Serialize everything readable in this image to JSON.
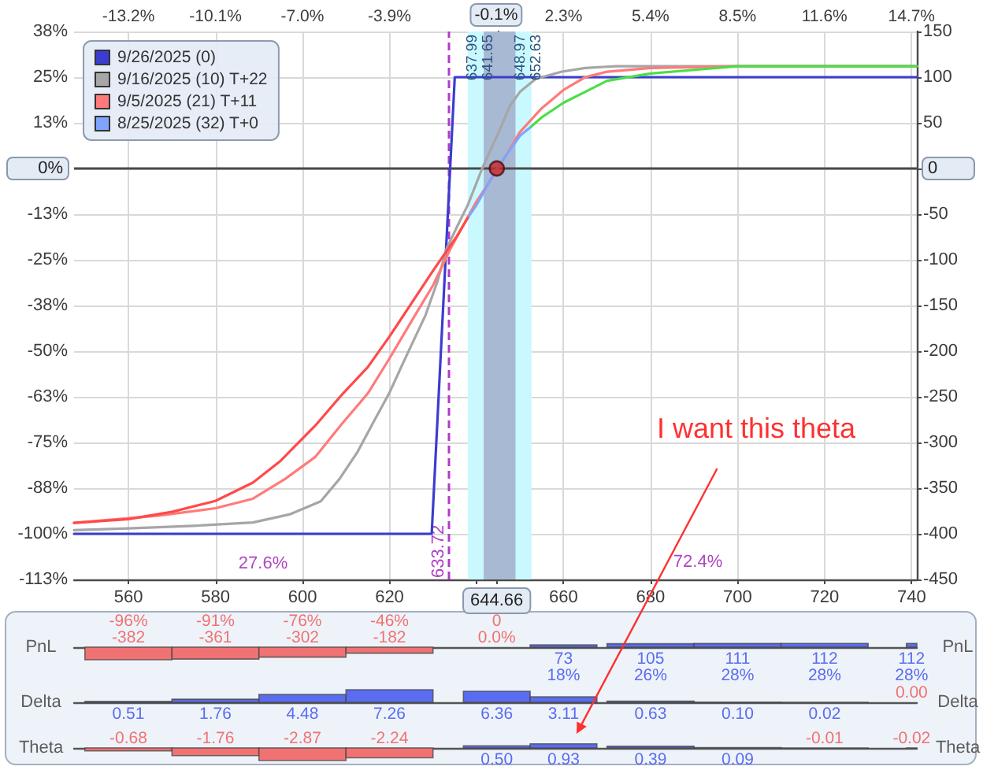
{
  "chart_data": [
    {
      "type": "line",
      "xlim": [
        547.5,
        741.2
      ],
      "xticks": [
        560,
        580,
        600,
        620,
        {
          "value": 640,
          "label": null
        },
        {
          "value": 644.66,
          "label": "644.66"
        },
        660,
        680,
        700,
        720,
        740
      ],
      "x2lim": [
        -15.14,
        14.89
      ],
      "x2ticks": [
        {
          "value": -13.2,
          "label": "-13.2%"
        },
        {
          "value": -10.1,
          "label": "-10.1%"
        },
        {
          "value": -7.0,
          "label": "-7.0%"
        },
        {
          "value": -3.9,
          "label": "-3.9%"
        },
        {
          "value": -0.8,
          "label": null
        },
        {
          "value": -0.1,
          "label": "-0.1%"
        },
        {
          "value": 2.3,
          "label": "2.3%"
        },
        {
          "value": 5.4,
          "label": "5.4%"
        },
        {
          "value": 8.5,
          "label": "8.5%"
        },
        {
          "value": 11.6,
          "label": "11.6%"
        },
        {
          "value": 14.7,
          "label": "14.7%"
        }
      ],
      "ylim": [
        -112.5,
        37.5
      ],
      "yticks": [
        {
          "value": 37.5,
          "label": "38%"
        },
        {
          "value": 25,
          "label": "25%"
        },
        {
          "value": 12.5,
          "label": "13%"
        },
        {
          "value": 0,
          "label": "0%"
        },
        {
          "value": -12.5,
          "label": "-13%"
        },
        {
          "value": -25,
          "label": "-25%"
        },
        {
          "value": -37.5,
          "label": "-38%"
        },
        {
          "value": -50,
          "label": "-50%"
        },
        {
          "value": -62.5,
          "label": "-63%"
        },
        {
          "value": -75,
          "label": "-75%"
        },
        {
          "value": -87.5,
          "label": "-88%"
        },
        {
          "value": -100,
          "label": "-100%"
        },
        {
          "value": -112.5,
          "label": "-113%"
        }
      ],
      "y2lim": [
        -450,
        150
      ],
      "y2ticks": [
        150,
        100,
        50,
        0,
        -50,
        -100,
        -150,
        -200,
        -250,
        -300,
        -350,
        -400,
        -450
      ],
      "grid": true,
      "legend": "top left",
      "marker": "none",
      "series": [
        {
          "name": "9/26/2025 (0)",
          "color": "#3c3cd0",
          "x": [
            547.5,
            629.7,
            635,
            741.2
          ],
          "values": [
            -100,
            -100,
            25,
            25
          ]
        },
        {
          "name": "9/16/2025 (10) T+22",
          "color": "#a6a6a6",
          "x": [
            547.5,
            560,
            575,
            588.6,
            597,
            604.2,
            608.5,
            612.7,
            616.5,
            619.9,
            624,
            628.3,
            631,
            633.1,
            635.5,
            638,
            641.3,
            643,
            645.5,
            647.6,
            650,
            653.6,
            659.6,
            665,
            672,
            741.2
          ],
          "values": [
            -99,
            -98.5,
            -97.8,
            -96.9,
            -94.7,
            -91.1,
            -85,
            -77.5,
            -69,
            -61.6,
            -51,
            -40.1,
            -31,
            -22,
            -16,
            -10,
            0,
            4.5,
            11,
            17,
            21,
            24.5,
            26.5,
            27.5,
            28,
            28
          ]
        },
        {
          "name": "9/5/2025 (21) T+11",
          "color": "#ff7b7b",
          "x": [
            547.5,
            567,
            580,
            588.6,
            596,
            603,
            609,
            615,
            620,
            625.9,
            630,
            634,
            640,
            645,
            650,
            655,
            660,
            665,
            670,
            680,
            700,
            741.2
          ],
          "values": [
            -97,
            -95,
            -93,
            -90.4,
            -85,
            -78.9,
            -70,
            -61.6,
            -52,
            -40.1,
            -32,
            -22,
            -9,
            0,
            10,
            16.5,
            21.5,
            25,
            26.5,
            27.5,
            28,
            28
          ]
        },
        {
          "name": "8/25/2025 (32) T+0",
          "color": "#7fa4ff",
          "x": [
            638,
            640,
            644.66,
            650,
            652.6
          ],
          "values": [
            -13.5,
            -10,
            0,
            9,
            11.5
          ]
        },
        {
          "color": "#ff4a4a",
          "x": [
            547.5,
            560,
            570,
            580,
            588.6,
            595,
            603,
            609,
            615,
            620,
            625,
            630,
            635.5,
            638
          ],
          "values": [
            -97,
            -96,
            -94,
            -91,
            -86,
            -80,
            -70.3,
            -62,
            -54.4,
            -46,
            -37,
            -28,
            -18.5,
            -13.5
          ]
        },
        {
          "color": "#4ade4a",
          "x": [
            652.6,
            655,
            660,
            665,
            670,
            680,
            690,
            700,
            720,
            741.2
          ],
          "values": [
            11.5,
            14,
            18,
            21,
            24,
            26,
            27,
            28,
            28,
            28
          ]
        },
        {
          "type": "scatter",
          "color": "#c82828",
          "marker": "circle",
          "x": [
            644.66
          ],
          "values": [
            0
          ]
        }
      ],
      "ref_lines": [
        {
          "axis": "x",
          "value": 633.72,
          "label": "633.72",
          "color": "#b03cc6",
          "line_style": "dashed"
        },
        {
          "axis": "y",
          "value": 0,
          "color": "#4a4a4a"
        }
      ],
      "bands": [
        {
          "axis": "x",
          "from": 637.99,
          "to": 652.63,
          "color": "#c9f9ff"
        },
        {
          "axis": "x",
          "from": 641.65,
          "to": 648.97,
          "color": "#a8b9d4"
        }
      ],
      "annotations": [
        "I want this theta",
        "27.6%",
        "72.4%",
        {
          "text": "637.99",
          "x": 637.99,
          "y": 37.5
        },
        {
          "text": "641.65",
          "x": 641.65,
          "y": 37.5
        },
        {
          "text": "648.97",
          "x": 648.97,
          "y": 37.5
        },
        {
          "text": "652.63",
          "x": 652.63,
          "y": 37.5
        }
      ]
    },
    {
      "type": "bar",
      "x": [
        560,
        580,
        600,
        620,
        644.66,
        660,
        680,
        700,
        720,
        740
      ],
      "values": [
        -382,
        -361,
        -302,
        -182,
        0,
        73,
        105,
        111,
        112,
        112
      ],
      "value_labels": [
        "-96%\n-382",
        "-91%\n-361",
        "-76%\n-302",
        "-46%\n-182",
        "0\n0.0%",
        "73\n18%",
        "105\n26%",
        "111\n28%",
        "112\n28%",
        "112\n28%"
      ],
      "colors": [
        "#f07272",
        "#f07272",
        "#f07272",
        "#f07272",
        "#f07272",
        "#5a6cf0",
        "#5a6cf0",
        "#5a6cf0",
        "#5a6cf0",
        "#5a6cf0"
      ],
      "xlim": [
        547.5,
        741.2
      ],
      "tick_labels": false,
      "ylabel": "PnL",
      "y2label": "PnL"
    },
    {
      "type": "bar",
      "x": [
        560,
        580,
        600,
        620,
        644.66,
        660,
        680,
        700,
        720,
        740
      ],
      "values": [
        0.51,
        1.76,
        4.48,
        7.26,
        6.36,
        3.11,
        0.63,
        0.1,
        0.02,
        0.0
      ],
      "value_labels": [
        "0.51",
        "1.76",
        "4.48",
        "7.26",
        "6.36",
        "3.11",
        "0.63",
        "0.10",
        "0.02",
        "0.00"
      ],
      "colors": [
        "#5a6cf0",
        "#5a6cf0",
        "#5a6cf0",
        "#5a6cf0",
        "#5a6cf0",
        "#5a6cf0",
        "#5a6cf0",
        "#5a6cf0",
        "#5a6cf0",
        "#f07272"
      ],
      "xlim": [
        547.5,
        741.2
      ],
      "tick_labels": false,
      "ylabel": "Delta",
      "y2label": "Delta"
    },
    {
      "type": "bar",
      "x": [
        560,
        580,
        600,
        620,
        644.66,
        660,
        680,
        700,
        720,
        740
      ],
      "values": [
        -0.68,
        -1.76,
        -2.87,
        -2.24,
        0.5,
        0.93,
        0.39,
        0.09,
        -0.01,
        -0.02
      ],
      "value_labels": [
        "-0.68",
        "-1.76",
        "-2.87",
        "-2.24",
        "0.50",
        "0.93",
        "0.39",
        "0.09",
        "-0.01",
        "-0.02"
      ],
      "colors": [
        "#f07272",
        "#f07272",
        "#f07272",
        "#f07272",
        "#5a6cf0",
        "#5a6cf0",
        "#5a6cf0",
        "#5a6cf0",
        "#f07272",
        "#f07272"
      ],
      "xlim": [
        547.5,
        741.2
      ],
      "tick_labels": false,
      "ylabel": "Theta",
      "y2label": "Theta"
    }
  ]
}
